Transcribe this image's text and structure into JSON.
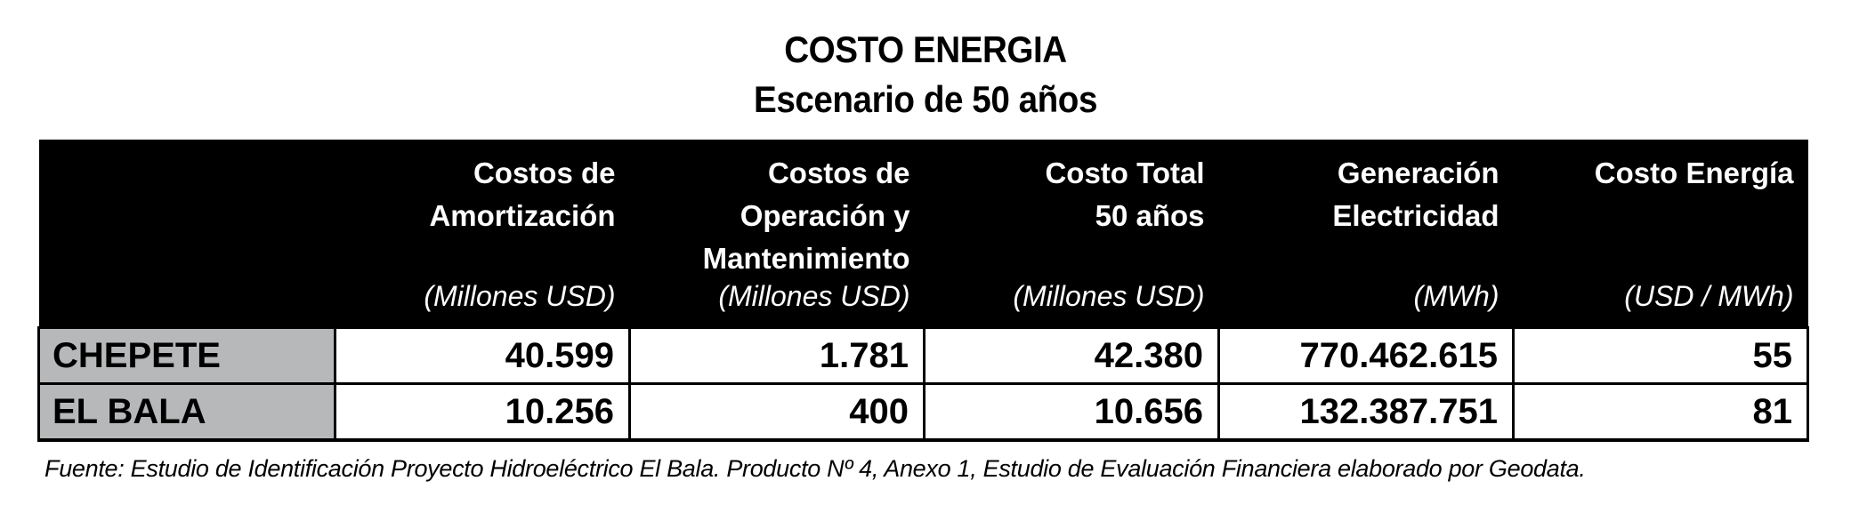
{
  "title": {
    "line1": "COSTO ENERGIA",
    "line2": "Escenario de 50 años"
  },
  "table": {
    "columns": [
      {
        "label": "",
        "unit": ""
      },
      {
        "label": "Costos de\nAmortización",
        "unit": "(Millones USD)"
      },
      {
        "label": "Costos de\nOperación y\nMantenimiento",
        "unit": "(Millones USD)"
      },
      {
        "label": "Costo Total\n50 años",
        "unit": "(Millones USD)"
      },
      {
        "label": "Generación\nElectricidad",
        "unit": "(MWh)"
      },
      {
        "label": "Costo Energía",
        "unit": "(USD / MWh)"
      }
    ],
    "rows": [
      {
        "name": "CHEPETE",
        "amortizacion": "40.599",
        "operacion": "1.781",
        "total": "42.380",
        "generacion": "770.462.615",
        "costo_energia": "55"
      },
      {
        "name": "EL BALA",
        "amortizacion": "10.256",
        "operacion": "400",
        "total": "10.656",
        "generacion": "132.387.751",
        "costo_energia": "81"
      }
    ]
  },
  "footer": {
    "source": "Fuente: Estudio de Identificación Proyecto Hidroeléctrico El Bala. Producto Nº 4, Anexo 1, Estudio de Evaluación Financiera elaborado por Geodata."
  },
  "colors": {
    "header_bg": "#000000",
    "header_text": "#ffffff",
    "rowlabel_bg": "#b6b8ba",
    "cell_bg": "#ffffff"
  }
}
